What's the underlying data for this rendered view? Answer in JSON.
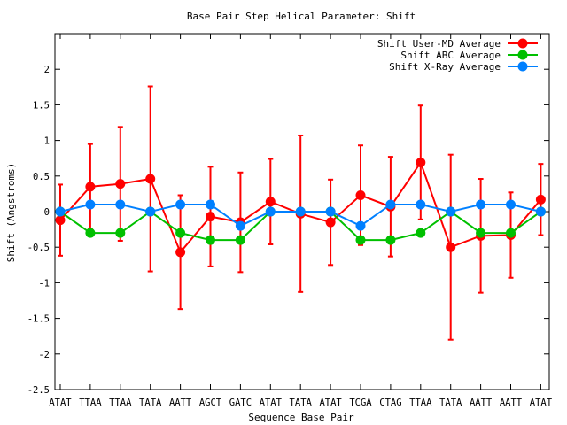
{
  "chart_data": {
    "type": "line",
    "title": "Base Pair Step Helical Parameter: Shift",
    "xlabel": "Sequence Base Pair",
    "ylabel": "Shift (Angstroms)",
    "ylim": [
      -2.5,
      2.5
    ],
    "yticks": [
      -2.5,
      -2,
      -1.5,
      -1,
      -0.5,
      0,
      0.5,
      1,
      1.5,
      2
    ],
    "ytick_labels": [
      "-2.5",
      "-2",
      "-1.5",
      "-1",
      "-0.5",
      "0",
      "0.5",
      "1",
      "1.5",
      "2"
    ],
    "categories": [
      "ATAT",
      "TTAA",
      "TTAA",
      "TATA",
      "AATT",
      "AGCT",
      "GATC",
      "ATAT",
      "TATA",
      "ATAT",
      "TCGA",
      "CTAG",
      "TTAA",
      "TATA",
      "AATT",
      "AATT",
      "ATAT"
    ],
    "grid": false,
    "legend_position": "top-right",
    "series": [
      {
        "name": "Shift User-MD Average",
        "color": "#ff0000",
        "values": [
          -0.12,
          0.35,
          0.39,
          0.46,
          -0.57,
          -0.07,
          -0.15,
          0.14,
          -0.03,
          -0.15,
          0.23,
          0.07,
          0.69,
          -0.5,
          -0.34,
          -0.33,
          0.17
        ],
        "error": [
          0.5,
          0.6,
          0.8,
          1.3,
          0.8,
          0.7,
          0.7,
          0.6,
          1.1,
          0.6,
          0.7,
          0.7,
          0.8,
          1.3,
          0.8,
          0.6,
          0.5
        ]
      },
      {
        "name": "Shift ABC Average",
        "color": "#00c000",
        "values": [
          0,
          -0.3,
          -0.3,
          0,
          -0.3,
          -0.4,
          -0.4,
          0,
          0,
          0,
          -0.4,
          -0.4,
          -0.3,
          0,
          -0.3,
          -0.3,
          0
        ]
      },
      {
        "name": "Shift X-Ray Average",
        "color": "#0080ff",
        "values": [
          0,
          0.1,
          0.1,
          0,
          0.1,
          0.1,
          -0.2,
          0,
          0,
          0,
          -0.2,
          0.1,
          0.1,
          0,
          0.1,
          0.1,
          0
        ]
      }
    ]
  }
}
